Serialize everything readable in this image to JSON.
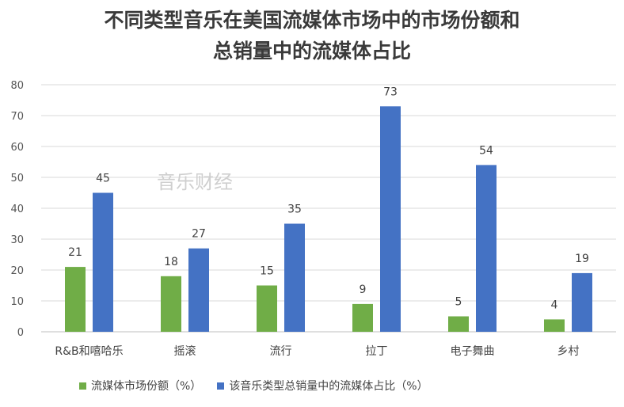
{
  "chart_data": {
    "type": "bar",
    "title_line1": "不同类型音乐在美国流媒体市场中的市场份额和",
    "title_line2": "总销量中的流媒体占比",
    "categories": [
      "R&B和嘻哈乐",
      "摇滚",
      "流行",
      "拉丁",
      "电子舞曲",
      "乡村"
    ],
    "series": [
      {
        "name": "流媒体市场份额（%）",
        "color": "#70ad47",
        "values": [
          21,
          18,
          15,
          9,
          5,
          4
        ]
      },
      {
        "name": "该音乐类型总销量中的流媒体占比（%）",
        "color": "#4472c4",
        "values": [
          45,
          27,
          35,
          73,
          54,
          19
        ]
      }
    ],
    "ylim": [
      0,
      80
    ],
    "yticks": [
      0,
      10,
      20,
      30,
      40,
      50,
      60,
      70,
      80
    ],
    "grid": true,
    "legend_position": "bottom",
    "watermark": "音乐财经"
  }
}
